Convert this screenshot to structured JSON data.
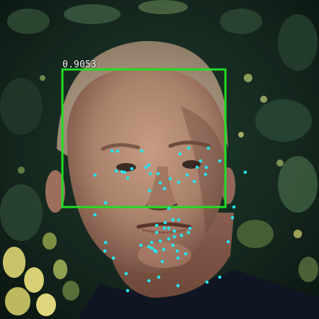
{
  "detection": {
    "score_text": "0.9053",
    "box_color": "#22dd22"
  },
  "landmarks": {
    "color": "#22e5f0",
    "count": 68
  },
  "palette": {
    "foliage_dark": "#0f1d16",
    "foliage_mid": "#1f3a2c",
    "foliage_light": "#c9c46a",
    "skin": "#b48b73",
    "skin_shadow": "#7c5446",
    "hair": "#c7b59e",
    "shirt": "#101726"
  }
}
